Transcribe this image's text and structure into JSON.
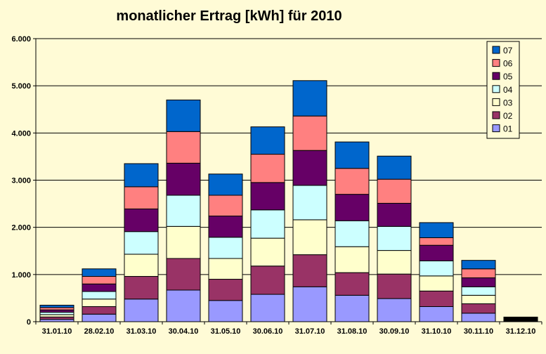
{
  "chart_data": {
    "type": "bar",
    "stacked": true,
    "title": "monatlicher Ertrag [kWh] für 2010",
    "xlabel": "",
    "ylabel": "",
    "ylim": [
      0,
      6000
    ],
    "yticks": [
      0,
      1000,
      2000,
      3000,
      4000,
      5000,
      6000
    ],
    "ytick_labels": [
      "0",
      "1.000",
      "2.000",
      "3.000",
      "4.000",
      "5.000",
      "6.000"
    ],
    "grid": true,
    "legend_position": "top-right",
    "categories": [
      "31.01.10",
      "28.02.10",
      "31.03.10",
      "30.04.10",
      "31.05.10",
      "30.06.10",
      "31.07.10",
      "31.08.10",
      "30.09.10",
      "31.10.10",
      "30.11.10",
      "31.12.10"
    ],
    "series": [
      {
        "name": "01",
        "color": "#9999ff",
        "values": [
          50,
          160,
          480,
          670,
          450,
          580,
          740,
          560,
          490,
          320,
          180,
          14
        ]
      },
      {
        "name": "02",
        "color": "#993366",
        "values": [
          50,
          160,
          480,
          670,
          450,
          600,
          680,
          480,
          520,
          330,
          200,
          14
        ]
      },
      {
        "name": "03",
        "color": "#ffffcc",
        "values": [
          50,
          160,
          470,
          680,
          440,
          590,
          740,
          550,
          500,
          320,
          180,
          14
        ]
      },
      {
        "name": "04",
        "color": "#ccffff",
        "values": [
          50,
          160,
          480,
          660,
          450,
          600,
          730,
          550,
          510,
          320,
          180,
          14
        ]
      },
      {
        "name": "05",
        "color": "#660066",
        "values": [
          50,
          160,
          480,
          680,
          450,
          580,
          740,
          560,
          490,
          330,
          190,
          14
        ]
      },
      {
        "name": "06",
        "color": "#ff8080",
        "values": [
          50,
          160,
          470,
          670,
          440,
          600,
          730,
          550,
          510,
          160,
          190,
          14
        ]
      },
      {
        "name": "07",
        "color": "#0066cc",
        "values": [
          50,
          160,
          490,
          670,
          450,
          580,
          750,
          560,
          490,
          320,
          180,
          14
        ]
      }
    ]
  }
}
